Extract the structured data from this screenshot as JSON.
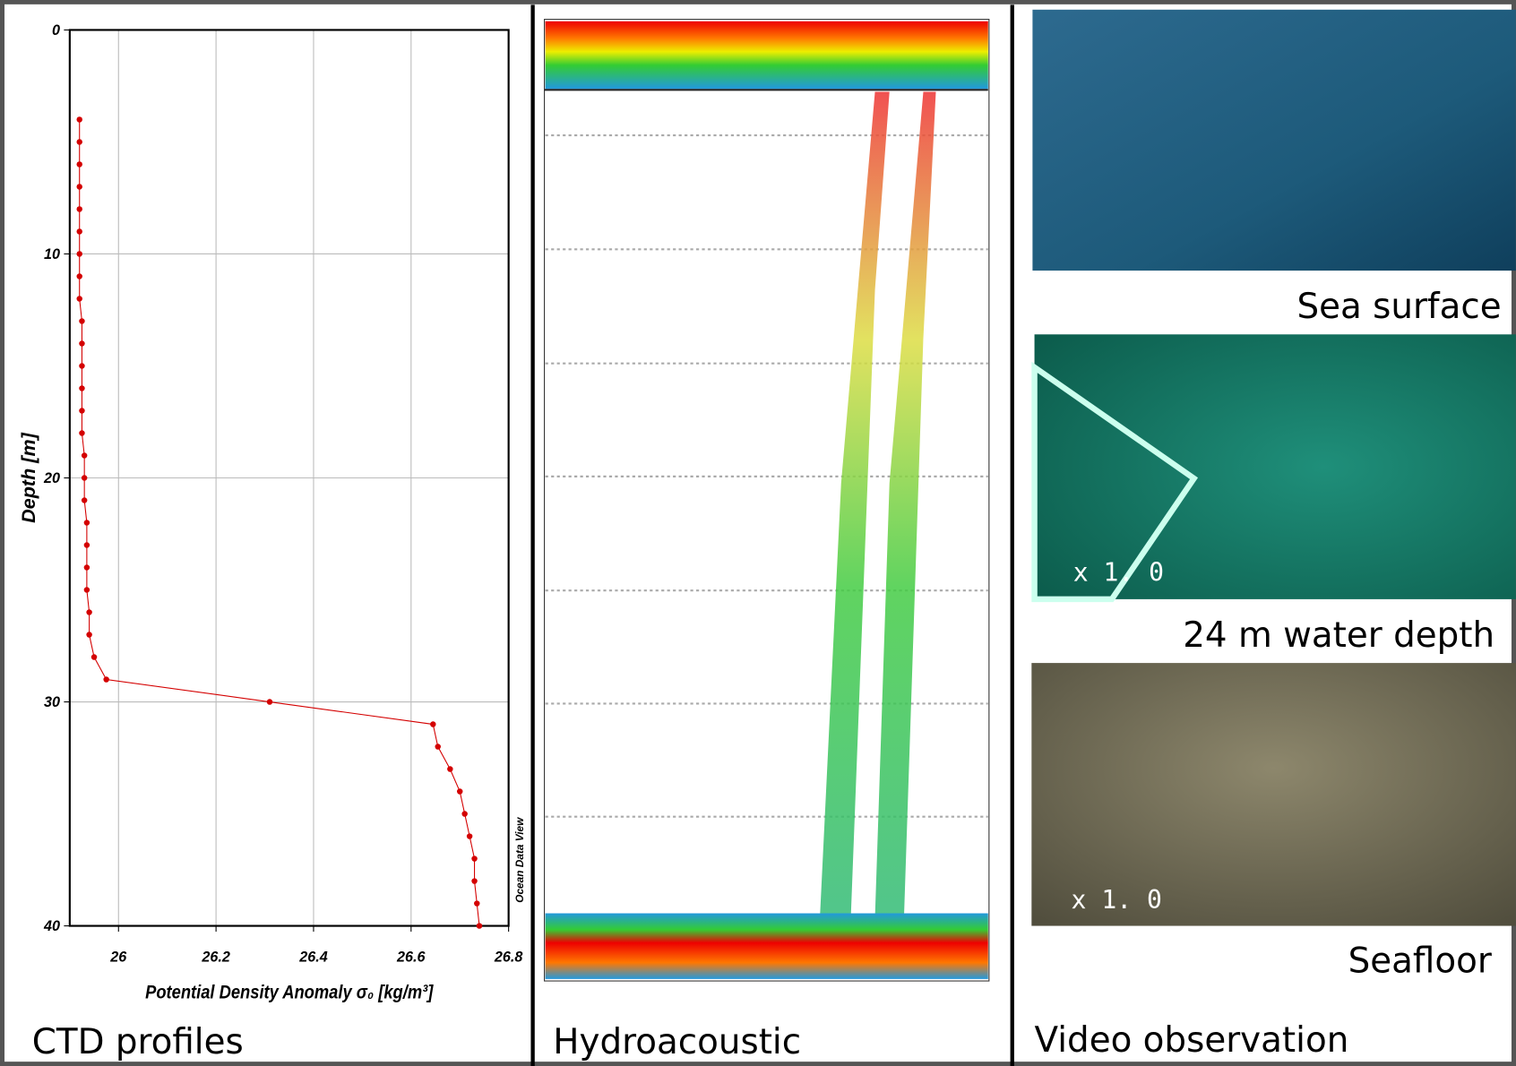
{
  "chart_data": {
    "type": "line",
    "x_label": "Potential Density Anomaly σ₀ [kg/m³]",
    "y_label": "Depth [m]",
    "watermark": "Ocean Data View",
    "xlim": [
      25.9,
      26.8
    ],
    "ylim": [
      0,
      40
    ],
    "y_inverted": true,
    "xticks": [
      26,
      26.2,
      26.4,
      26.6,
      26.8
    ],
    "yticks": [
      0,
      10,
      20,
      30,
      40
    ],
    "grid": true,
    "series": [
      {
        "color": "#d40000",
        "x": [
          25.92,
          25.92,
          25.92,
          25.92,
          25.92,
          25.92,
          25.92,
          25.92,
          25.92,
          25.925,
          25.925,
          25.925,
          25.925,
          25.925,
          25.925,
          25.93,
          25.93,
          25.93,
          25.935,
          25.935,
          25.935,
          25.935,
          25.94,
          25.94,
          25.95,
          25.975,
          26.31,
          26.645,
          26.655,
          26.68,
          26.7,
          26.71,
          26.72,
          26.73,
          26.73,
          26.735,
          26.74
        ],
        "y": [
          4,
          5,
          6,
          7,
          8,
          9,
          10,
          11,
          12,
          13,
          14,
          15,
          16,
          17,
          18,
          19,
          20,
          21,
          22,
          23,
          24,
          25,
          26,
          27,
          28,
          29,
          30,
          31,
          32,
          33,
          34,
          35,
          36,
          37,
          38,
          39,
          40
        ]
      }
    ]
  },
  "panels": {
    "ctd": "CTD profiles",
    "hydro": "Hydroacoustic",
    "video": "Video observation",
    "photo1": "Sea surface",
    "photo2": "24 m water depth",
    "photo3": "Seafloor",
    "zoom2": "x 1. 0",
    "zoom3": "x 1. 0"
  }
}
